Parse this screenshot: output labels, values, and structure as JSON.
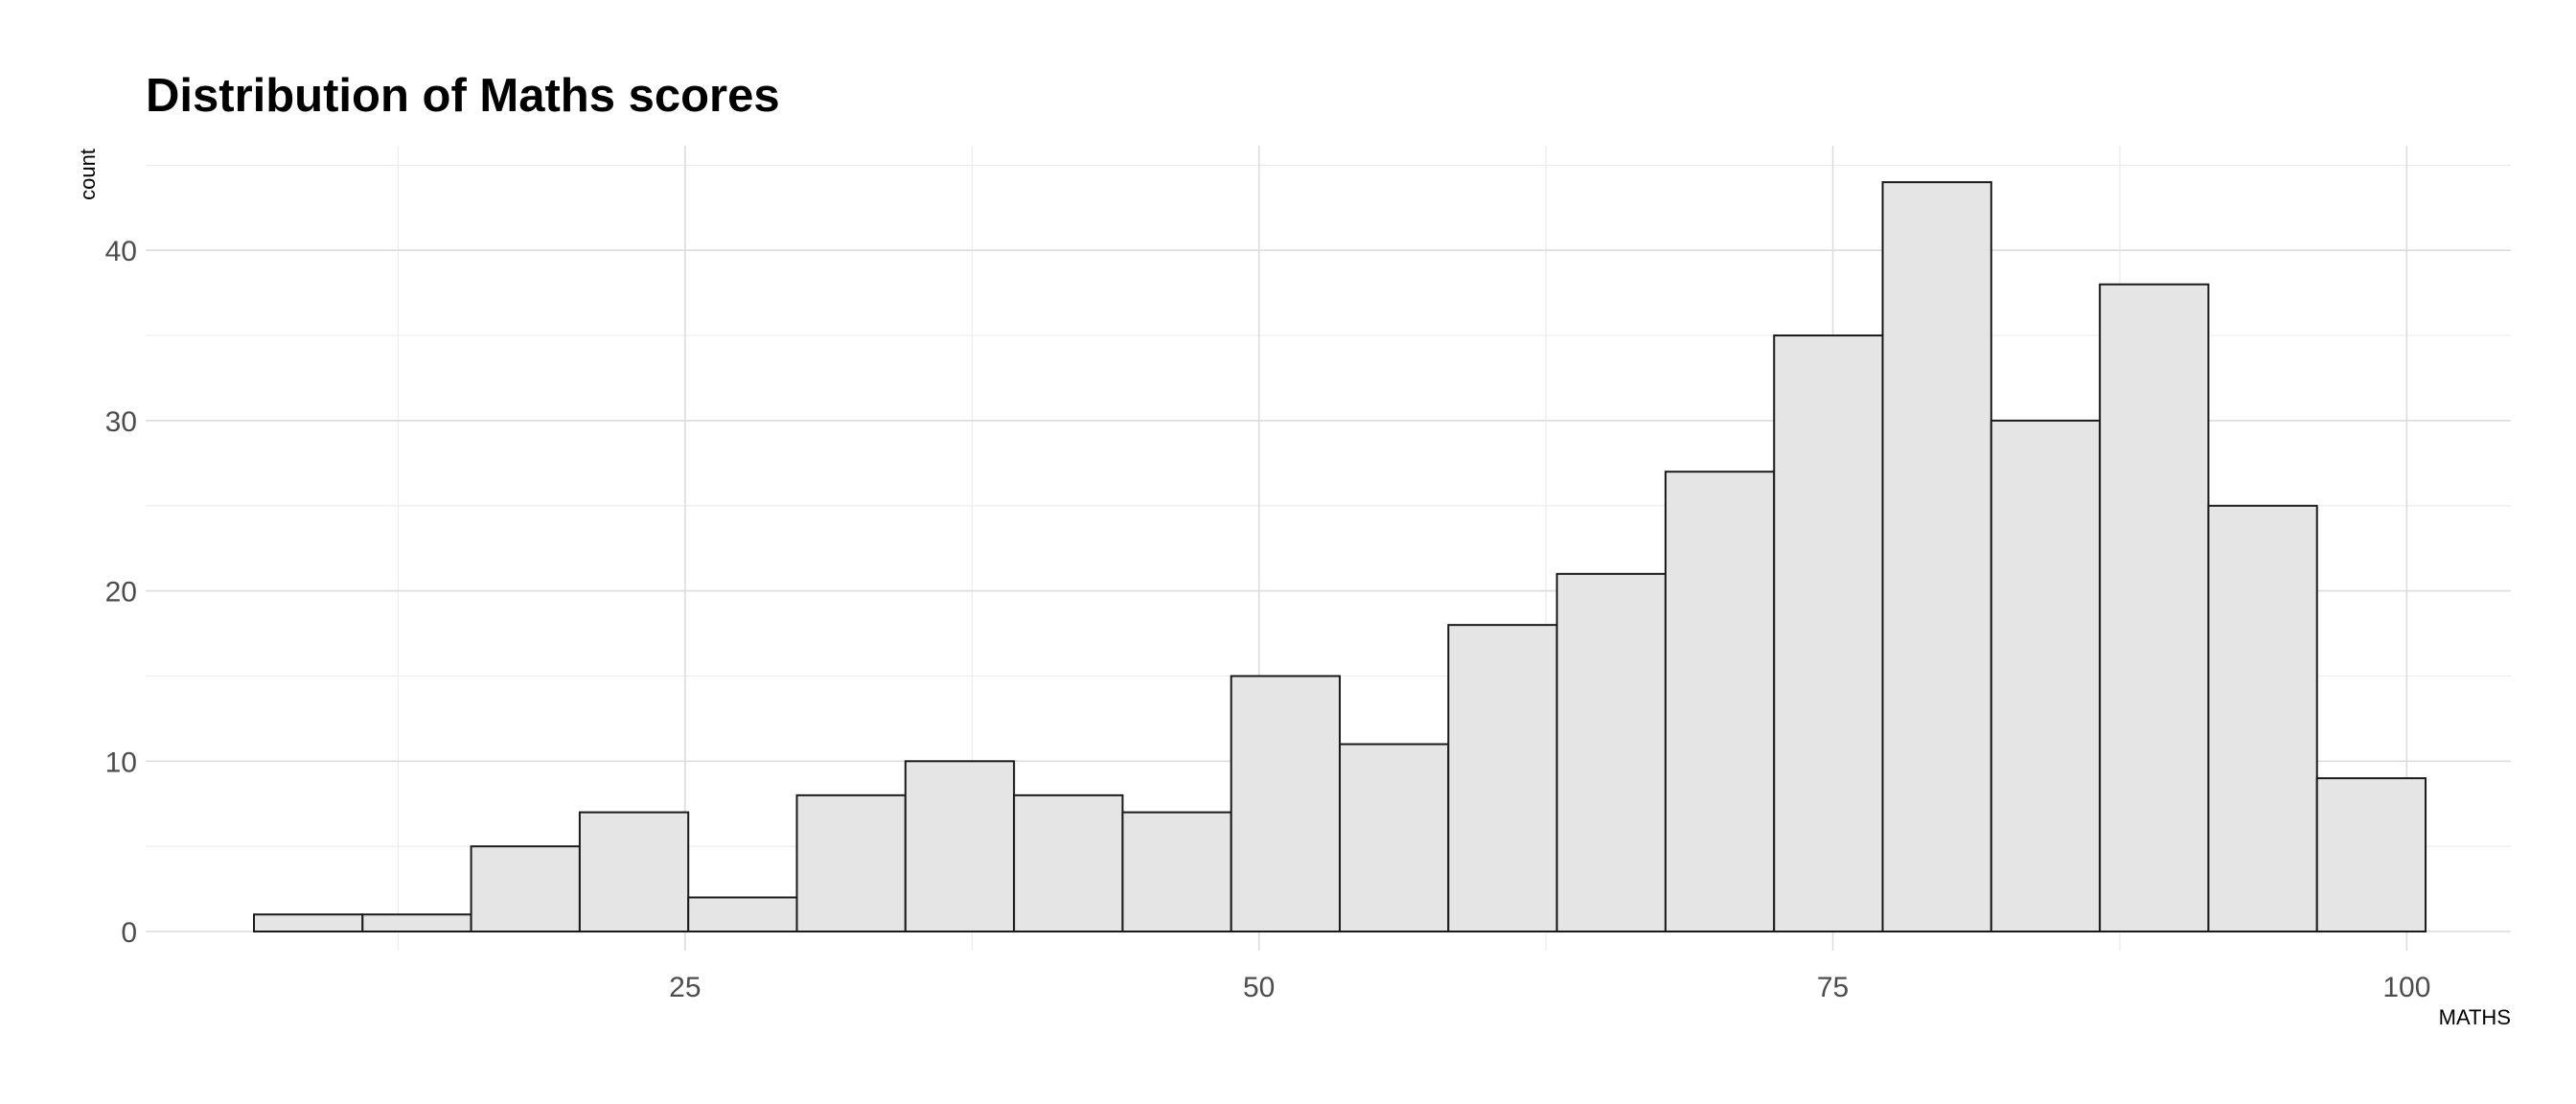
{
  "chart_data": {
    "type": "bar",
    "title": "Distribution of Maths scores",
    "xlabel": "MATHS",
    "ylabel": "count",
    "xlim": [
      6.22,
      99.9
    ],
    "ylim": [
      0,
      44
    ],
    "x_ticks": [
      25,
      50,
      75,
      100
    ],
    "y_ticks": [
      0,
      10,
      20,
      30,
      40
    ],
    "grid": true,
    "legend": "none",
    "bins": {
      "start": 6.22,
      "width": 4.73,
      "counts": [
        1,
        1,
        5,
        7,
        2,
        8,
        10,
        8,
        7,
        15,
        11,
        18,
        21,
        27,
        35,
        44,
        30,
        38,
        25,
        9
      ]
    }
  }
}
